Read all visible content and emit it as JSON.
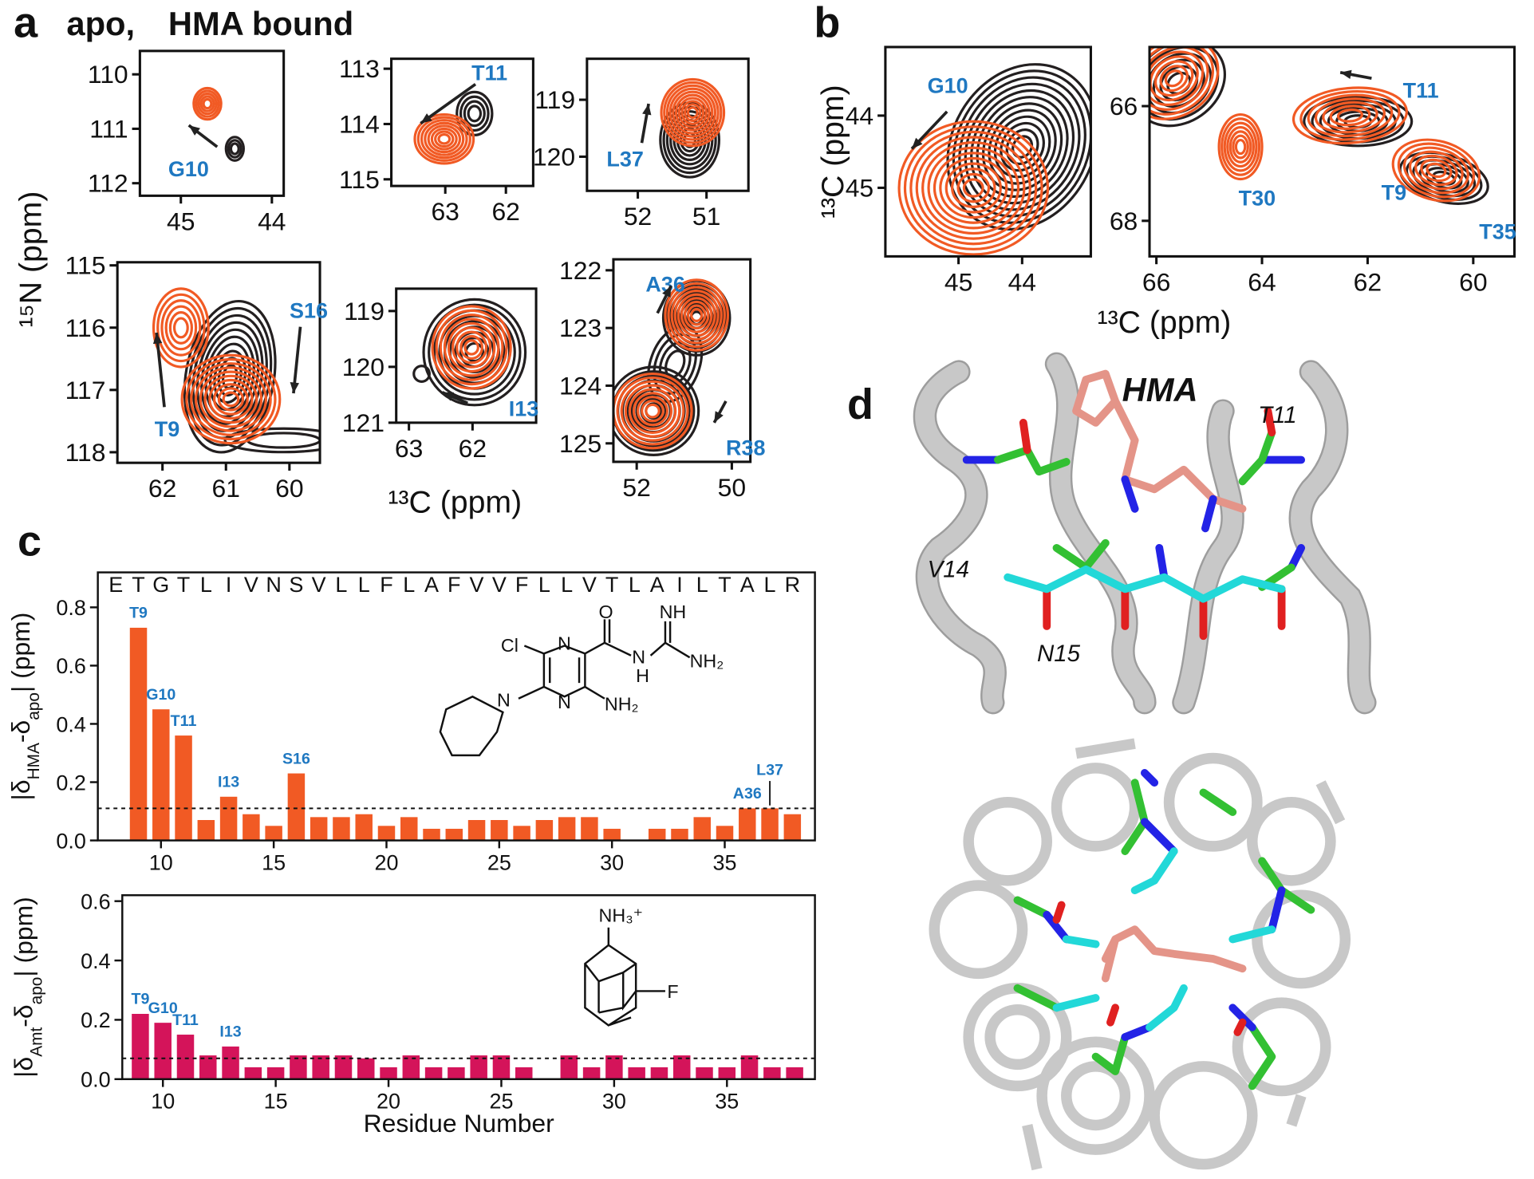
{
  "panel_letters": [
    "a",
    "b",
    "c",
    "d"
  ],
  "legend": [
    {
      "name": "apo,",
      "color": "#231f20"
    },
    {
      "name": "HMA bound",
      "color": "#f15a24"
    }
  ],
  "spectra_axis_labels": {
    "n15": "¹⁵N (ppm)",
    "c13_a": "¹³C (ppm)",
    "c13_b_y": "¹³C (ppm)",
    "c13_b_x": "¹³C (ppm)"
  },
  "spectra": [
    {
      "xlim": [
        43.87,
        45.45
      ],
      "ylim": [
        109.57,
        112.23
      ],
      "x_reversed": true,
      "y_reversed": true,
      "xticks": [
        44,
        45
      ],
      "yticks": [
        110,
        111,
        112
      ],
      "peak_labels": [
        "G10"
      ]
    },
    {
      "xlim": [
        61.55,
        63.89
      ],
      "ylim": [
        112.82,
        115.12
      ],
      "x_reversed": true,
      "y_reversed": true,
      "xticks": [
        62,
        63
      ],
      "yticks": [
        113,
        114,
        115
      ],
      "peak_labels": [
        "T11"
      ]
    },
    {
      "xlim": [
        50.39,
        52.74
      ],
      "ylim": [
        118.28,
        120.6
      ],
      "x_reversed": true,
      "y_reversed": true,
      "xticks": [
        51,
        52
      ],
      "yticks": [
        119,
        120
      ],
      "peak_labels": [
        "L37"
      ]
    },
    {
      "xlim": [
        59.52,
        62.71
      ],
      "ylim": [
        114.95,
        118.17
      ],
      "x_reversed": true,
      "y_reversed": true,
      "xticks": [
        60,
        61,
        62
      ],
      "yticks": [
        115,
        116,
        117,
        118
      ],
      "peak_labels": [
        "S16",
        "T9"
      ]
    },
    {
      "xlim": [
        61.0,
        63.2
      ],
      "ylim": [
        118.6,
        121.0
      ],
      "x_reversed": true,
      "y_reversed": true,
      "xticks": [
        62,
        63
      ],
      "yticks": [
        119,
        120,
        121
      ],
      "peak_labels": [
        "I13"
      ]
    },
    {
      "xlim": [
        49.61,
        52.49
      ],
      "ylim": [
        121.81,
        125.32
      ],
      "x_reversed": true,
      "y_reversed": true,
      "xticks": [
        50,
        52
      ],
      "yticks": [
        122,
        123,
        124,
        125
      ],
      "peak_labels": [
        "A36",
        "R38"
      ]
    },
    {
      "xlim": [
        42.92,
        46.15
      ],
      "ylim": [
        43.05,
        45.95
      ],
      "x_reversed": true,
      "y_reversed": true,
      "xticks": [
        44,
        45
      ],
      "yticks": [
        44,
        45
      ],
      "peak_labels": [
        "G10"
      ]
    },
    {
      "xlim": [
        59.22,
        66.13
      ],
      "ylim": [
        64.97,
        68.62
      ],
      "x_reversed": true,
      "y_reversed": true,
      "xticks": [
        60,
        62,
        64,
        66
      ],
      "yticks": [
        66,
        68
      ],
      "peak_labels": [
        "T11",
        "T30",
        "T9",
        "T35"
      ]
    }
  ],
  "chart_data": [
    {
      "type": "bar",
      "ylabel_parts": [
        "|δ",
        "HMA",
        "-δ",
        "apo",
        "| (ppm)"
      ],
      "sequence": "ETGTLIVNSVLLFLAFVVFLLVTLAILTALR",
      "x": [
        9,
        10,
        11,
        12,
        13,
        14,
        15,
        16,
        17,
        18,
        19,
        20,
        21,
        22,
        23,
        24,
        25,
        26,
        27,
        28,
        29,
        30,
        31,
        32,
        33,
        34,
        35,
        36,
        37,
        38
      ],
      "values": [
        0.73,
        0.45,
        0.36,
        0.07,
        0.15,
        0.09,
        0.05,
        0.23,
        0.08,
        0.08,
        0.09,
        0.05,
        0.08,
        0.04,
        0.04,
        0.07,
        0.07,
        0.05,
        0.07,
        0.08,
        0.08,
        0.04,
        null,
        0.04,
        0.04,
        0.08,
        0.05,
        0.11,
        0.11,
        0.09
      ],
      "bar_labels": [
        "T9",
        "G10",
        "T11",
        null,
        "I13",
        null,
        null,
        "S16",
        null,
        null,
        null,
        null,
        null,
        null,
        null,
        null,
        null,
        null,
        null,
        null,
        null,
        null,
        null,
        null,
        null,
        null,
        null,
        "A36",
        "L37",
        null
      ],
      "color": "#f15a24",
      "threshold": 0.11,
      "xlim": [
        7.2,
        39
      ],
      "xticks": [
        10,
        15,
        20,
        25,
        30,
        35
      ],
      "ylim": [
        0,
        0.92
      ],
      "yticks": [
        {
          "value": 0,
          "label": "0.0"
        },
        0.2,
        0.4,
        0.6,
        0.8
      ]
    },
    {
      "type": "bar",
      "ylabel_parts": [
        "|δ",
        "Amt",
        "-δ",
        "apo",
        "| (ppm)"
      ],
      "xlabel": "Residue Number",
      "x": [
        9,
        10,
        11,
        12,
        13,
        14,
        15,
        16,
        17,
        18,
        19,
        20,
        21,
        22,
        23,
        24,
        25,
        26,
        27,
        28,
        29,
        30,
        31,
        32,
        33,
        34,
        35,
        36,
        37,
        38
      ],
      "values": [
        0.22,
        0.19,
        0.15,
        0.08,
        0.11,
        0.04,
        0.04,
        0.08,
        0.08,
        0.08,
        0.07,
        0.04,
        0.08,
        0.04,
        0.04,
        0.08,
        0.08,
        0.04,
        null,
        0.08,
        0.04,
        0.08,
        0.04,
        0.04,
        0.08,
        0.04,
        0.04,
        0.08,
        0.04,
        0.04
      ],
      "bar_labels": [
        "T9",
        "G10",
        "T11",
        null,
        "I13",
        null,
        null,
        null,
        null,
        null,
        null,
        null,
        null,
        null,
        null,
        null,
        null,
        null,
        null,
        null,
        null,
        null,
        null,
        null,
        null,
        null,
        null,
        null,
        null,
        null
      ],
      "color": "#d4145a",
      "threshold": 0.07,
      "xlim": [
        8.2,
        38.9
      ],
      "xticks": [
        10,
        15,
        20,
        25,
        30,
        35
      ],
      "ylim": [
        0,
        0.62
      ],
      "yticks": [
        {
          "value": 0,
          "label": "0.0"
        },
        0.2,
        0.4,
        0.6
      ]
    }
  ],
  "molecules": {
    "hma_atoms": [
      "N",
      "N",
      "Cl",
      "O",
      "N",
      "H",
      "NH",
      "NH₂",
      "NH₂",
      "N"
    ],
    "amt_atoms": [
      "NH₃⁺",
      "F"
    ]
  },
  "structure_labels": [
    "HMA",
    "T11",
    "V14",
    "N15"
  ]
}
